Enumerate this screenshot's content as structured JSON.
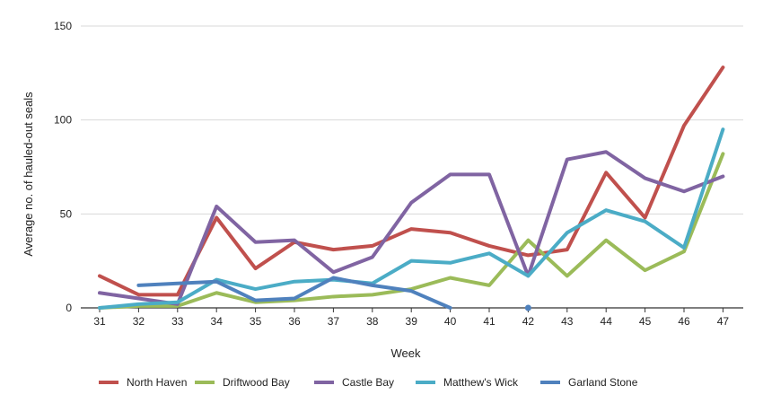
{
  "chart_data": {
    "type": "line",
    "xlabel": "Week",
    "ylabel": "Average no. of hauled-out seals",
    "categories": [
      "31",
      "32",
      "33",
      "34",
      "35",
      "36",
      "37",
      "38",
      "39",
      "40",
      "41",
      "42",
      "43",
      "44",
      "45",
      "46",
      "47"
    ],
    "ylim": [
      0,
      150
    ],
    "yticks": [
      0,
      50,
      100,
      150
    ],
    "grid": "horizontal",
    "legend_position": "bottom",
    "series": [
      {
        "name": "North Haven",
        "color": "#c0504d",
        "values": [
          17,
          7,
          7,
          48,
          21,
          35,
          31,
          33,
          42,
          40,
          33,
          28,
          31,
          72,
          48,
          97,
          128
        ]
      },
      {
        "name": "Driftwood Bay",
        "color": "#9bbb59",
        "values": [
          0,
          1,
          1,
          8,
          3,
          4,
          6,
          7,
          10,
          16,
          12,
          36,
          17,
          36,
          20,
          30,
          82
        ]
      },
      {
        "name": "Castle Bay",
        "color": "#8064a2",
        "values": [
          8,
          5,
          2,
          54,
          35,
          36,
          19,
          27,
          56,
          71,
          71,
          17,
          79,
          83,
          69,
          62,
          70
        ]
      },
      {
        "name": "Matthew's Wick",
        "color": "#4bacc6",
        "values": [
          0,
          2,
          3,
          15,
          10,
          14,
          15,
          13,
          25,
          24,
          29,
          17,
          40,
          52,
          46,
          32,
          95
        ]
      },
      {
        "name": "Garland Stone",
        "color": "#4f81bd",
        "values": [
          null,
          12,
          13,
          14,
          4,
          5,
          16,
          12,
          9,
          0,
          null,
          0,
          null,
          null,
          null,
          null,
          null
        ]
      }
    ]
  }
}
